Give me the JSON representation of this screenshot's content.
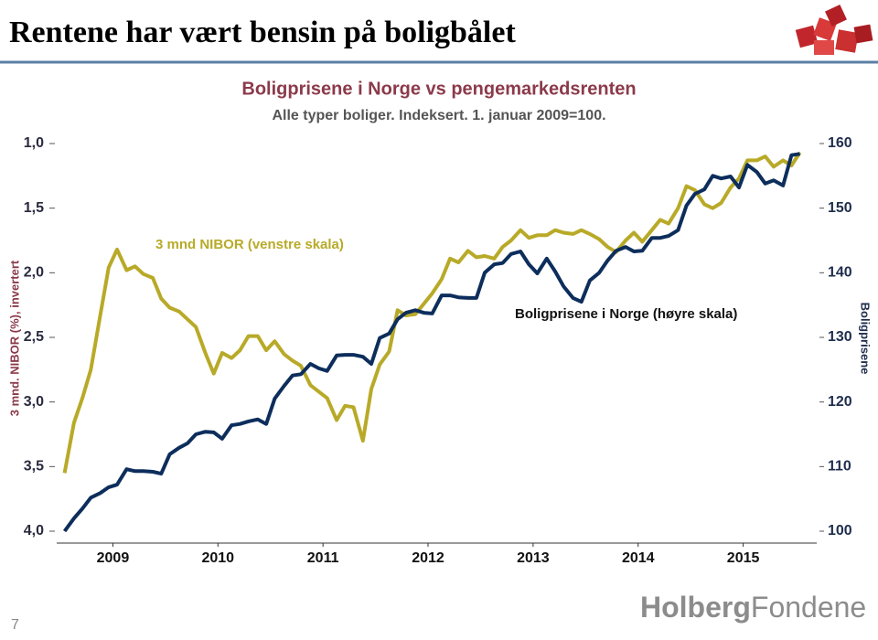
{
  "header": {
    "title": "Rentene har vært bensin på boligbålet",
    "page_number": "7",
    "logo": [
      "Holberg",
      "Fondene"
    ]
  },
  "chart_data": {
    "type": "line",
    "title": "Boligprisene i Norge vs pengemarkedsrenten",
    "subtitle": "Alle typer boliger. Indeksert. 1. januar 2009=100.",
    "ylabel": "3 mnd. NIBOR (%), invertert",
    "y2label": "Boligprisene",
    "annotations": [
      "3 mnd NIBOR (venstre skala)",
      "Boligprisene i Norge (høyre skala)"
    ],
    "xlim": [
      2009,
      2016.2
    ],
    "xticks": [
      {
        "value": 2009.5,
        "label": "2009"
      },
      {
        "value": 2010.5,
        "label": "2010"
      },
      {
        "value": 2011.5,
        "label": "2011"
      },
      {
        "value": 2012.5,
        "label": "2012"
      },
      {
        "value": 2013.5,
        "label": "2013"
      },
      {
        "value": 2014.5,
        "label": "2014"
      },
      {
        "value": 2015.5,
        "label": "2015"
      }
    ],
    "ylim": [
      4,
      1
    ],
    "yticks": [
      {
        "value": 1,
        "label": "1,0"
      },
      {
        "value": 1.5,
        "label": "1,5"
      },
      {
        "value": 2,
        "label": "2,0"
      },
      {
        "value": 2.5,
        "label": "2,5"
      },
      {
        "value": 3,
        "label": "3,0"
      },
      {
        "value": 3.5,
        "label": "3,5"
      },
      {
        "value": 4,
        "label": "4,0"
      }
    ],
    "y2lim": [
      100,
      160
    ],
    "y2ticks": [
      100,
      110,
      120,
      130,
      140,
      150,
      160
    ],
    "x": [
      2009.04,
      2009.13,
      2009.21,
      2009.29,
      2009.38,
      2009.46,
      2009.54,
      2009.63,
      2009.71,
      2009.79,
      2009.88,
      2009.96,
      2010.04,
      2010.13,
      2010.21,
      2010.29,
      2010.38,
      2010.46,
      2010.54,
      2010.63,
      2010.71,
      2010.79,
      2010.88,
      2010.96,
      2011.04,
      2011.13,
      2011.21,
      2011.29,
      2011.38,
      2011.46,
      2011.54,
      2011.63,
      2011.71,
      2011.79,
      2011.88,
      2011.96,
      2012.04,
      2012.13,
      2012.21,
      2012.29,
      2012.38,
      2012.46,
      2012.54,
      2012.63,
      2012.71,
      2012.79,
      2012.88,
      2012.96,
      2013.04,
      2013.13,
      2013.21,
      2013.29,
      2013.38,
      2013.46,
      2013.54,
      2013.63,
      2013.71,
      2013.79,
      2013.88,
      2013.96,
      2014.04,
      2014.13,
      2014.21,
      2014.29,
      2014.38,
      2014.46,
      2014.54,
      2014.63,
      2014.71,
      2014.79,
      2014.88,
      2014.96,
      2015.04,
      2015.13,
      2015.21,
      2015.29,
      2015.38,
      2015.46,
      2015.54,
      2015.63,
      2015.71,
      2015.79,
      2015.88,
      2015.96,
      2016.04
    ],
    "series": [
      {
        "name": "3 mnd NIBOR",
        "color": "#b8aa28",
        "axis": "y",
        "values": [
          3.55,
          3.16,
          2.97,
          2.75,
          2.33,
          1.96,
          1.82,
          1.98,
          1.95,
          2.01,
          2.04,
          2.2,
          2.27,
          2.3,
          2.36,
          2.42,
          2.62,
          2.78,
          2.62,
          2.66,
          2.6,
          2.49,
          2.49,
          2.6,
          2.53,
          2.63,
          2.68,
          2.72,
          2.87,
          2.92,
          2.97,
          3.14,
          3.03,
          3.04,
          3.3,
          2.9,
          2.71,
          2.61,
          2.29,
          2.33,
          2.32,
          2.24,
          2.16,
          2.05,
          1.89,
          1.92,
          1.83,
          1.88,
          1.87,
          1.89,
          1.8,
          1.75,
          1.67,
          1.73,
          1.71,
          1.71,
          1.67,
          1.69,
          1.7,
          1.67,
          1.7,
          1.74,
          1.8,
          1.84,
          1.75,
          1.69,
          1.76,
          1.67,
          1.59,
          1.62,
          1.5,
          1.33,
          1.36,
          1.47,
          1.5,
          1.46,
          1.34,
          1.27,
          1.13,
          1.13,
          1.1,
          1.18,
          1.13,
          1.17,
          1.07
        ]
      },
      {
        "name": "Boligprisene i Norge",
        "color": "#0d2e5c",
        "axis": "y2",
        "values": [
          100,
          102,
          103.5,
          105.2,
          105.9,
          106.8,
          107.2,
          109.6,
          109.3,
          109.3,
          109.2,
          108.9,
          111.9,
          112.9,
          113.6,
          115,
          115.4,
          115.3,
          114.3,
          116.4,
          116.6,
          117,
          117.3,
          116.6,
          120.5,
          122.5,
          124.1,
          124.3,
          125.9,
          125.2,
          124.8,
          127.2,
          127.3,
          127.3,
          127,
          125.9,
          129.9,
          130.6,
          132.8,
          133.8,
          134.2,
          133.8,
          133.7,
          136.5,
          136.5,
          136.2,
          136.1,
          136.1,
          140,
          141.3,
          141.5,
          142.9,
          143.3,
          141.3,
          139.9,
          142.2,
          140.2,
          137.9,
          136.1,
          135.5,
          138.8,
          140,
          141.9,
          143.4,
          144,
          143.3,
          143.4,
          145.4,
          145.4,
          145.7,
          146.6,
          150.4,
          152.2,
          152.9,
          155,
          154.6,
          154.9,
          153.2,
          156.7,
          155.6,
          153.8,
          154.3,
          153.5,
          158.2,
          158.4
        ]
      }
    ]
  }
}
